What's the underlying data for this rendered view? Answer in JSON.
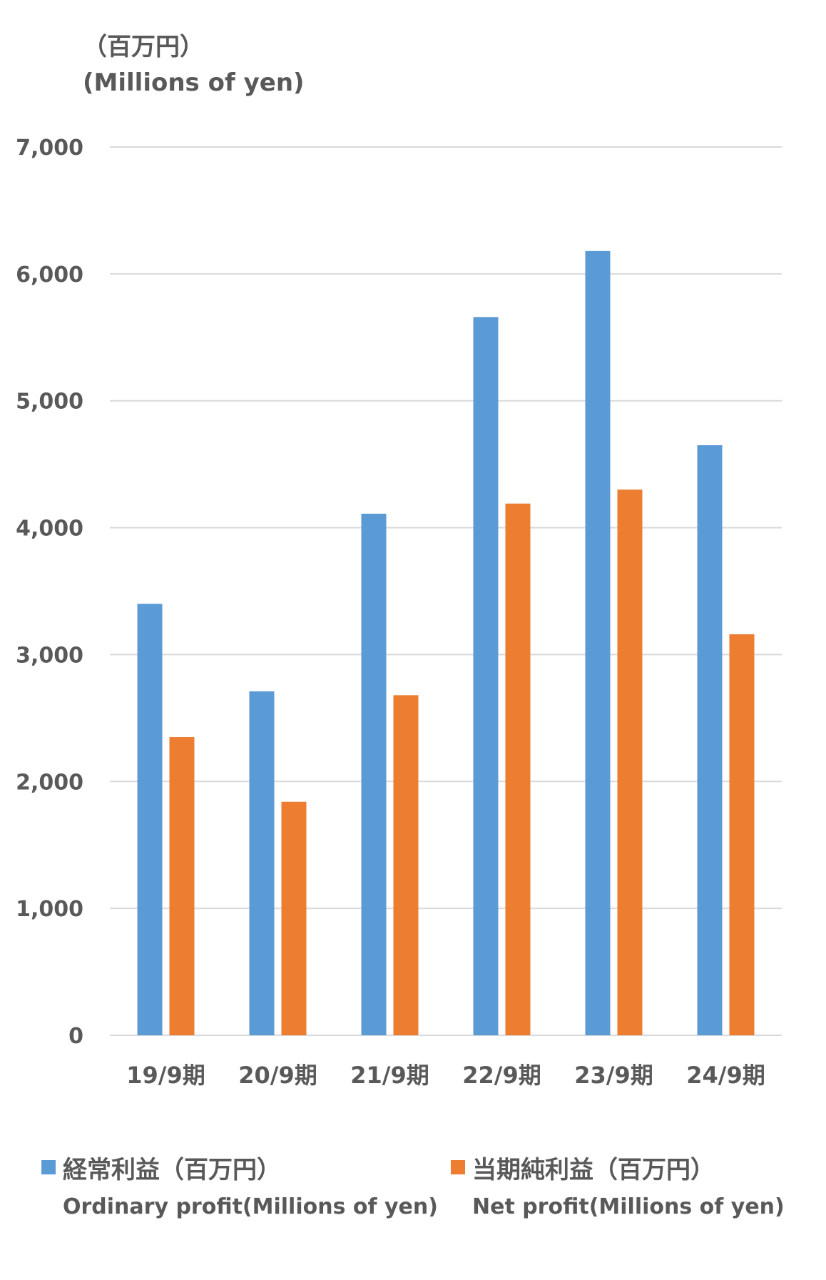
{
  "unit_label_ja": "（百万円）",
  "unit_label_en": "(Millions of yen)",
  "colors": {
    "series1": "#5B9BD5",
    "series2": "#ED7D31",
    "grid": "#D9D9D9",
    "text": "#595959"
  },
  "legend": [
    {
      "ja": "経常利益（百万円）",
      "en": "Ordinary profit(Millions of yen)"
    },
    {
      "ja": "当期純利益（百万円）",
      "en": "Net profit(Millions of yen)"
    }
  ],
  "chart_data": {
    "type": "bar",
    "categories": [
      "19/9期",
      "20/9期",
      "21/9期",
      "22/9期",
      "23/9期",
      "24/9期"
    ],
    "series": [
      {
        "name": "経常利益（百万円） Ordinary profit(Millions of yen)",
        "values": [
          3400,
          2710,
          4110,
          5660,
          6180,
          4650
        ]
      },
      {
        "name": "当期純利益（百万円） Net profit(Millions of yen)",
        "values": [
          2350,
          1840,
          2680,
          4190,
          4300,
          3160
        ]
      }
    ],
    "ylim": [
      0,
      7000
    ],
    "yticks": [
      0,
      1000,
      2000,
      3000,
      4000,
      5000,
      6000,
      7000
    ],
    "ytick_labels": [
      "0",
      "1,000",
      "2,000",
      "3,000",
      "4,000",
      "5,000",
      "6,000",
      "7,000"
    ],
    "grid": true,
    "legend_position": "bottom"
  }
}
